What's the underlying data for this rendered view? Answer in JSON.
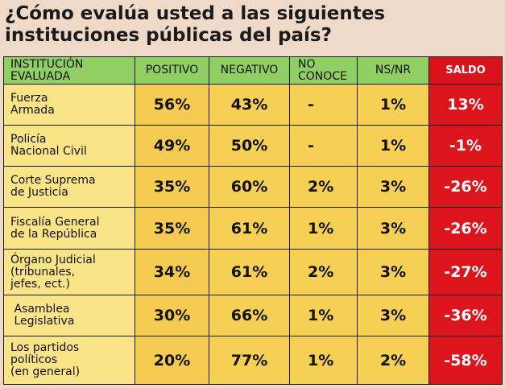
{
  "title_lines": [
    "¿Cómo evalúa usted a las siguientes",
    "instituciones públicas del país?"
  ],
  "colors": {
    "header_bg": "#8fcf63",
    "body_bg": "#f6cf55",
    "label_bg": "#f9e487",
    "saldo_bg": "#dc141c",
    "page_bg": "#efd9c8"
  },
  "headers": {
    "institucion": [
      "INSTITUCIÓN",
      "EVALUADA"
    ],
    "positivo": "POSITIVO",
    "negativo": "NEGATIVO",
    "no_conoce": [
      "NO",
      "CONOCE"
    ],
    "nsnr": "NS/NR",
    "saldo": "SALDO"
  },
  "rows": [
    {
      "label": [
        "Fuerza",
        "Armada"
      ],
      "positivo": "56%",
      "negativo": "43%",
      "no_conoce": "-",
      "nsnr": "1%",
      "saldo": "13%"
    },
    {
      "label": [
        "Policía",
        "Nacional Civil"
      ],
      "positivo": "49%",
      "negativo": "50%",
      "no_conoce": "-",
      "nsnr": "1%",
      "saldo": "-1%"
    },
    {
      "label": [
        "Corte Suprema",
        "de Justicia"
      ],
      "positivo": "35%",
      "negativo": "60%",
      "no_conoce": "2%",
      "nsnr": "3%",
      "saldo": "-26%"
    },
    {
      "label": [
        "Fiscalía General",
        "de la República"
      ],
      "positivo": "35%",
      "negativo": "61%",
      "no_conoce": "1%",
      "nsnr": "3%",
      "saldo": "-26%"
    },
    {
      "label": [
        "Órgano Judicial",
        "(tribunales,",
        "jefes, ect.)"
      ],
      "positivo": "34%",
      "negativo": "61%",
      "no_conoce": "2%",
      "nsnr": "3%",
      "saldo": "-27%"
    },
    {
      "label": [
        " Asamblea",
        " Legislativa"
      ],
      "positivo": "30%",
      "negativo": "66%",
      "no_conoce": "1%",
      "nsnr": "3%",
      "saldo": "-36%"
    },
    {
      "label": [
        "Los partidos",
        "políticos",
        "(en general)"
      ],
      "positivo": "20%",
      "negativo": "77%",
      "no_conoce": "1%",
      "nsnr": "2%",
      "saldo": "-58%"
    }
  ],
  "chart_data": {
    "type": "table",
    "title": "¿Cómo evalúa usted a las siguientes instituciones públicas del país?",
    "columns": [
      "INSTITUCIÓN EVALUADA",
      "POSITIVO",
      "NEGATIVO",
      "NO CONOCE",
      "NS/NR",
      "SALDO"
    ],
    "categories": [
      "Fuerza Armada",
      "Policía Nacional Civil",
      "Corte Suprema de Justicia",
      "Fiscalía General de la República",
      "Órgano Judicial (tribunales, jefes, ect.)",
      "Asamblea Legislativa",
      "Los partidos políticos (en general)"
    ],
    "series": [
      {
        "name": "POSITIVO",
        "values": [
          56,
          49,
          35,
          35,
          34,
          30,
          20
        ]
      },
      {
        "name": "NEGATIVO",
        "values": [
          43,
          50,
          60,
          61,
          61,
          66,
          77
        ]
      },
      {
        "name": "NO CONOCE",
        "values": [
          null,
          null,
          2,
          1,
          2,
          1,
          1
        ]
      },
      {
        "name": "NS/NR",
        "values": [
          1,
          1,
          3,
          3,
          3,
          3,
          2
        ]
      },
      {
        "name": "SALDO",
        "values": [
          13,
          -1,
          -26,
          -26,
          -27,
          -36,
          -58
        ]
      }
    ]
  }
}
